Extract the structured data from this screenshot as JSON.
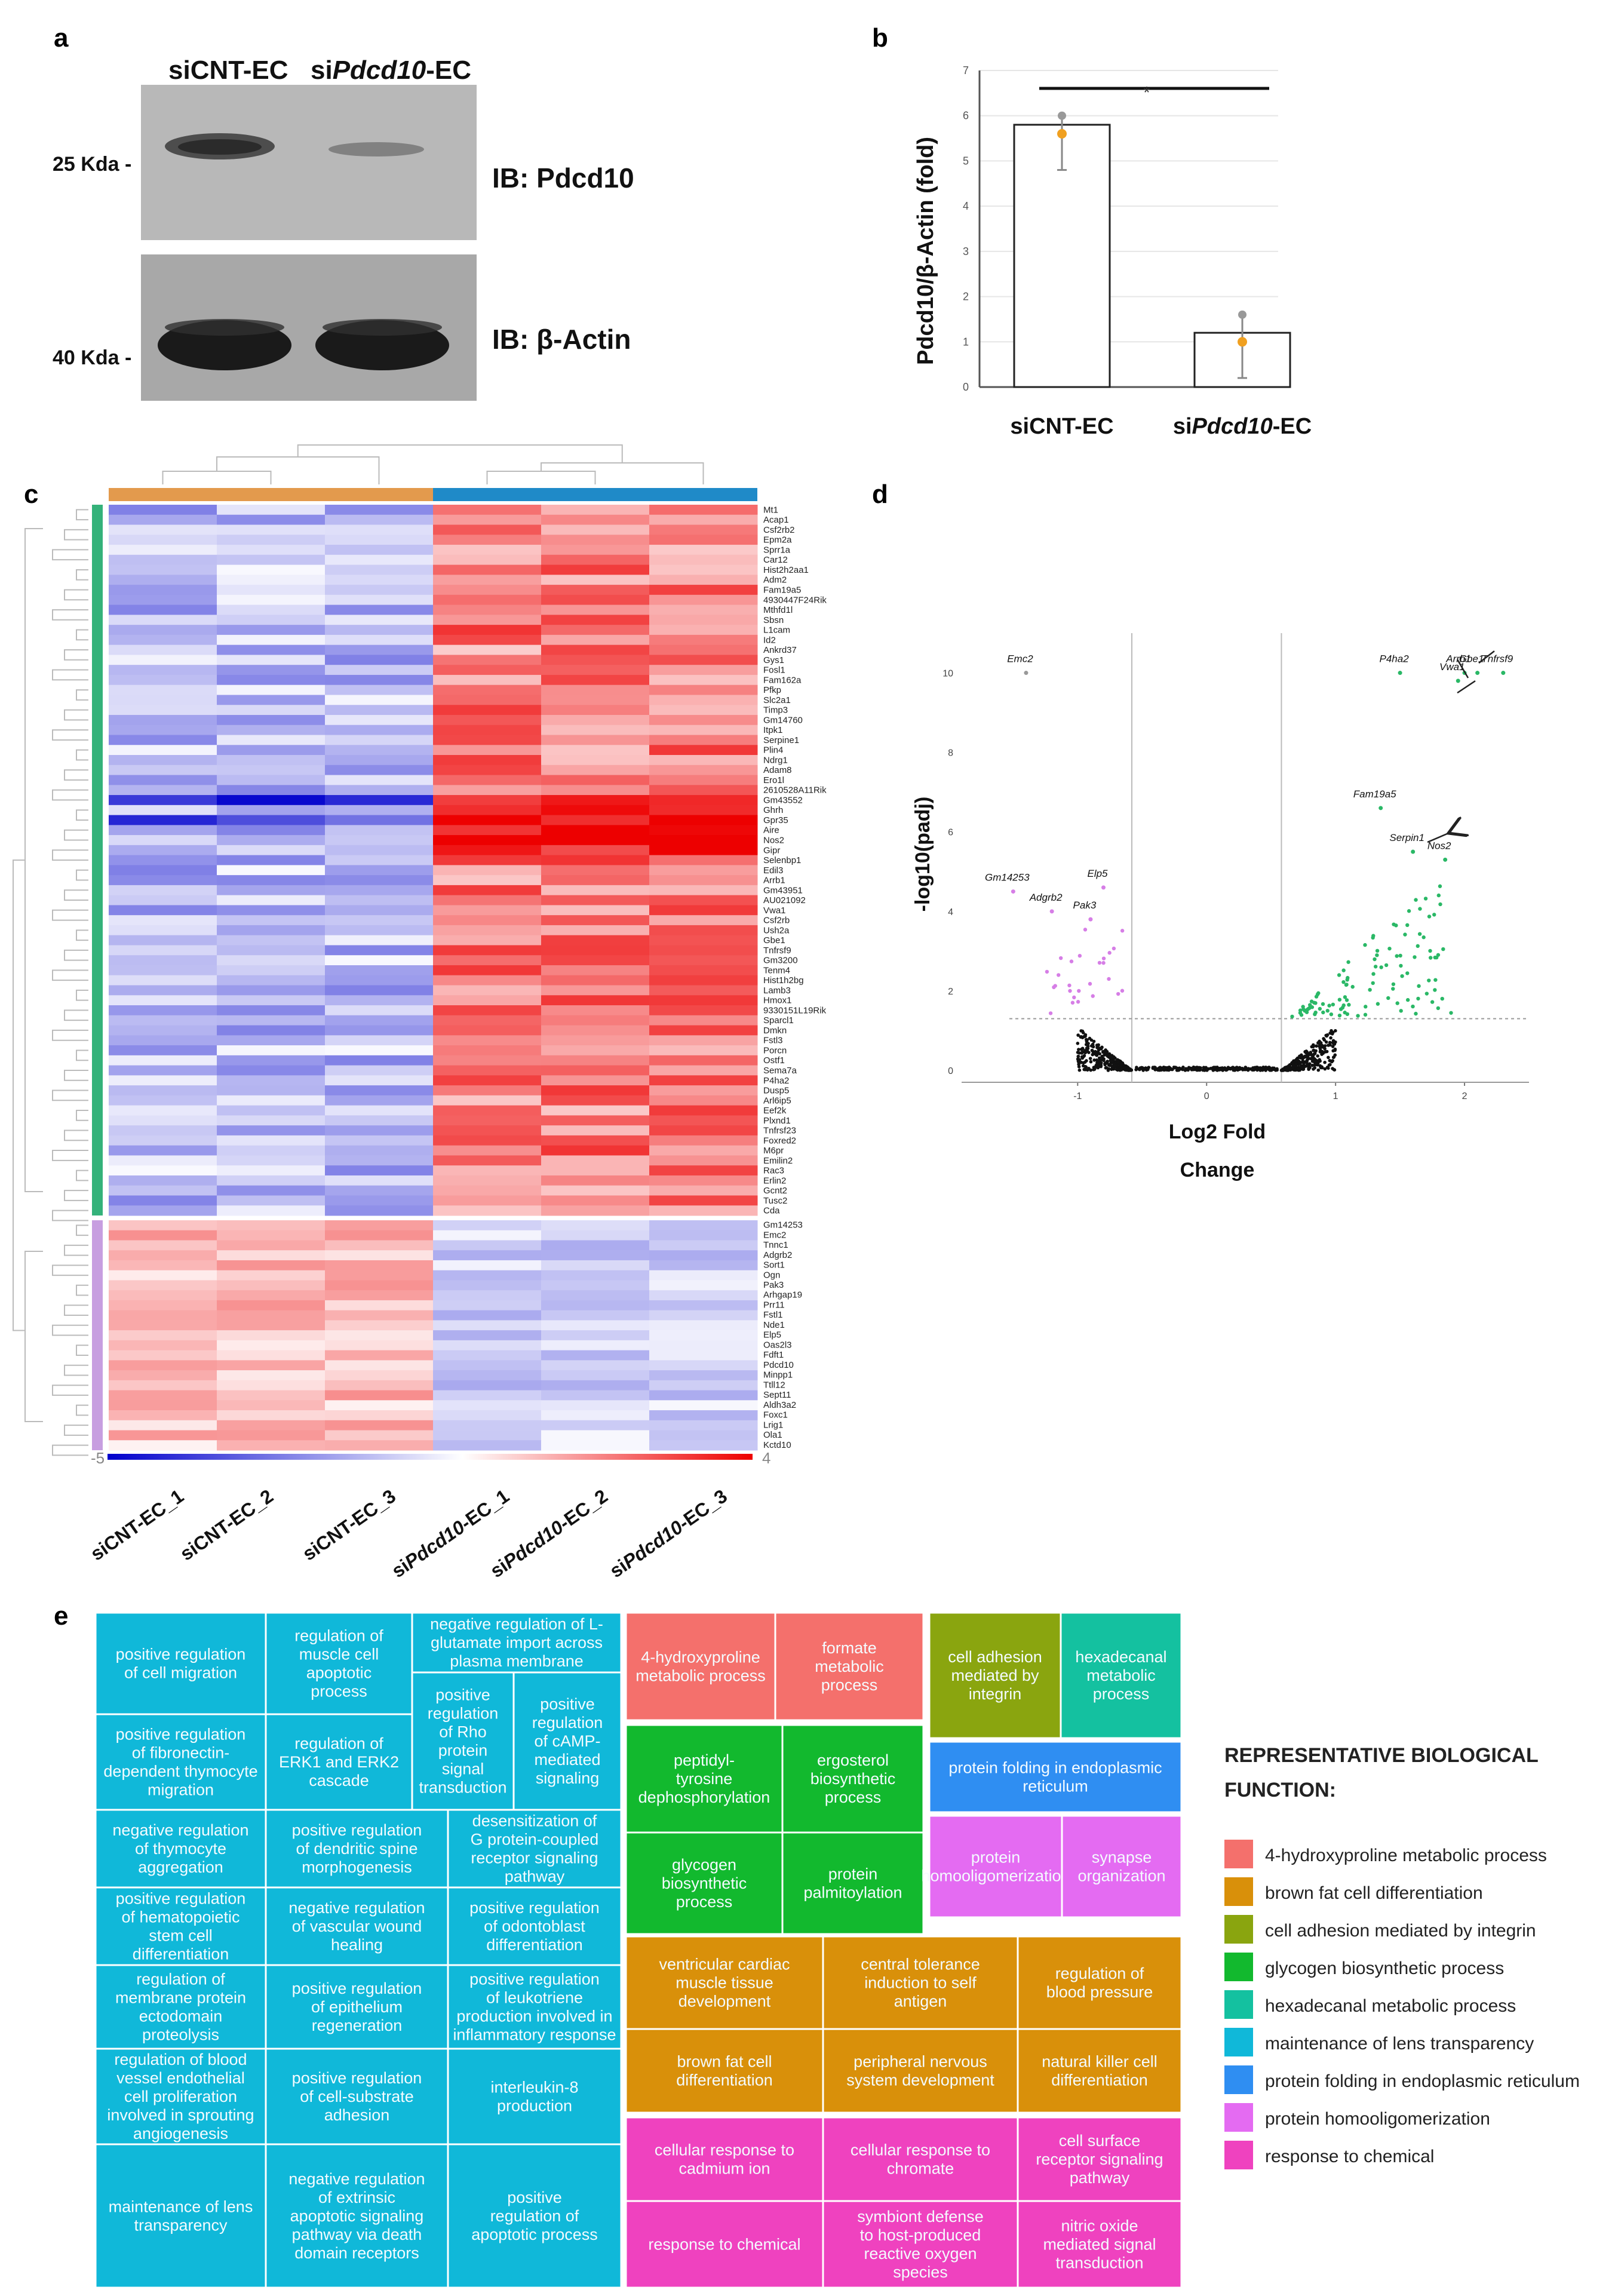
{
  "panel_labels": {
    "a": "a",
    "b": "b",
    "c": "c",
    "d": "d",
    "e": "e"
  },
  "panel_a": {
    "lane1_label": "siCNT-EC",
    "lane2_prefix": "si",
    "lane2_gene": "Pdcd10",
    "lane2_suffix": "-EC",
    "mw_top": "25 Kda -",
    "mw_bottom": "40 Kda -",
    "ib_top": "IB: Pdcd10",
    "ib_bottom": "IB: β-Actin"
  },
  "panel_b": {
    "ylabel": "Pdcd10/β-Actin (fold)",
    "significance": "*",
    "x1_label": "siCNT-EC",
    "x2_prefix": "si",
    "x2_gene": "Pdcd10",
    "x2_suffix": "-EC"
  },
  "chart_data": [
    {
      "type": "bar",
      "categories": [
        "siCNT-EC",
        "siPdcd10-EC"
      ],
      "values": [
        5.8,
        1.2
      ],
      "error_low": [
        4.8,
        0.2
      ],
      "error_high": [
        6.0,
        1.6
      ],
      "points": [
        [
          6.0,
          5.6
        ],
        [
          1.6,
          1.0
        ]
      ],
      "ylim": [
        0,
        7
      ],
      "yticks": [
        "0",
        "1",
        "2",
        "3",
        "4",
        "5",
        "6",
        "7"
      ],
      "ylabel": "Pdcd10/β-Actin (fold)",
      "significance": "*"
    },
    {
      "type": "heatmap",
      "samples": [
        "siCNT-EC_1",
        "siCNT-EC_2",
        "siCNT-EC_3",
        "siPdcd10-EC_1",
        "siPdcd10-EC_2",
        "siPdcd10-EC_3"
      ],
      "sample_prefix": [
        "siCNT-EC_1",
        "siCNT-EC_2",
        "siCNT-EC_3",
        "si",
        "si",
        "si"
      ],
      "sample_gene": [
        "",
        "",
        "",
        "Pdcd10",
        "Pdcd10",
        "Pdcd10"
      ],
      "sample_suffix": [
        "",
        "",
        "",
        "-EC_1",
        "-EC_2",
        "-EC_3"
      ],
      "genes_up": [
        "Mt1",
        "Acap1",
        "Csf2rb2",
        "Epm2a",
        "Sprr1a",
        "Car12",
        "Hist2h2aa1",
        "Adm2",
        "Fam19a5",
        "4930447F24Rik",
        "Mthfd1l",
        "Sbsn",
        "L1cam",
        "Id2",
        "Ankrd37",
        "Gys1",
        "Fosl1",
        "Fam162a",
        "Pfkp",
        "Slc2a1",
        "Timp3",
        "Gm14760",
        "Itpk1",
        "Serpine1",
        "Plin4",
        "Ndrg1",
        "Adam8",
        "Ero1l",
        "2610528A11Rik",
        "Gm43552",
        "Ghrh",
        "Gpr35",
        "Aire",
        "Nos2",
        "Gipr",
        "Selenbp1",
        "Edil3",
        "Arrb1",
        "Gm43951",
        "AU021092",
        "Vwa1",
        "Csf2rb",
        "Ush2a",
        "Gbe1",
        "Tnfrsf9",
        "Gm3200",
        "Tenm4",
        "Hist1h2bg",
        "Lamb3",
        "Hmox1",
        "9330151L19Rik",
        "Sparcl1",
        "Dmkn",
        "Fstl3",
        "Porcn",
        "Ostf1",
        "Sema7a",
        "P4ha2",
        "Dusp5",
        "Arl6ip5",
        "Eef2k",
        "Plxnd1",
        "Tnfrsf23",
        "Foxred2",
        "M6pr",
        "Emilin2",
        "Rac3",
        "Erlin2",
        "Gcnt2",
        "Tusc2",
        "Cda"
      ],
      "genes_down": [
        "Gm14253",
        "Emc2",
        "Tnnc1",
        "Adgrb2",
        "Sort1",
        "Ogn",
        "Pak3",
        "Arhgap19",
        "Prr11",
        "Fstl1",
        "Nde1",
        "Elp5",
        "Oas2l3",
        "Fdft1",
        "Pdcd10",
        "Minpp1",
        "Ttll12",
        "Sept11",
        "Aldh3a2",
        "Foxc1",
        "Lrig1",
        "Ola1",
        "Kctd10"
      ],
      "colorbar_min": "-5",
      "colorbar_max": "4",
      "colorscale": [
        "#0000cc",
        "#ffffff",
        "#ee0000"
      ]
    },
    {
      "type": "scatter",
      "xlabel": "Log2 Fold Change",
      "xlabel_line1": "Log2 Fold",
      "xlabel_line2": "Change",
      "ylabel": "-log10(padj)",
      "xlim": [
        -1.9,
        2.5
      ],
      "ylim": [
        -0.3,
        11
      ],
      "xticks": [
        "-1",
        "0",
        "1",
        "2"
      ],
      "yticks": [
        "0",
        "2",
        "4",
        "6",
        "8",
        "10"
      ],
      "fc_cutoffs": [
        -0.58,
        0.58
      ],
      "padj_cutoff": 1.3,
      "labels": [
        {
          "gene": "Emc2",
          "x": -1.4,
          "y": 10.0
        },
        {
          "gene": "Gm14253",
          "x": -1.5,
          "y": 4.5
        },
        {
          "gene": "Adgrb2",
          "x": -1.2,
          "y": 4.0
        },
        {
          "gene": "Elp5",
          "x": -0.8,
          "y": 4.6
        },
        {
          "gene": "Pak3",
          "x": -0.9,
          "y": 3.8
        },
        {
          "gene": "P4ha2",
          "x": 1.5,
          "y": 10.0
        },
        {
          "gene": "Arrb1",
          "x": 2.0,
          "y": 10.0
        },
        {
          "gene": "Gbe1",
          "x": 2.1,
          "y": 10.0
        },
        {
          "gene": "Tnfrsf9",
          "x": 2.3,
          "y": 10.0
        },
        {
          "gene": "Vwa1",
          "x": 1.95,
          "y": 9.8
        },
        {
          "gene": "Fam19a5",
          "x": 1.35,
          "y": 6.6
        },
        {
          "gene": "Serpin1",
          "x": 1.6,
          "y": 5.5
        },
        {
          "gene": "Nos2",
          "x": 1.85,
          "y": 5.3
        }
      ]
    }
  ],
  "panel_e": {
    "legend_title_1": "REPRESENTATIVE BIOLOGICAL",
    "legend_title_2": "FUNCTION:",
    "legend": [
      {
        "label": "4-hydroxyproline metabolic process",
        "color": "#f4706c"
      },
      {
        "label": "brown fat cell differentiation",
        "color": "#d9900a"
      },
      {
        "label": "cell adhesion mediated by integrin",
        "color": "#8aa50f"
      },
      {
        "label": "glycogen biosynthetic process",
        "color": "#12b92e"
      },
      {
        "label": "hexadecanal metabolic process",
        "color": "#14c1a0"
      },
      {
        "label": "maintenance of lens transparency",
        "color": "#10b8d9"
      },
      {
        "label": "protein folding in endoplasmic reticulum",
        "color": "#2f8ef2"
      },
      {
        "label": "protein homooligomerization",
        "color": "#e46bf2"
      },
      {
        "label": "response to chemical",
        "color": "#ef42bf"
      }
    ],
    "tiles": [
      "positive regulation|of cell migration",
      "regulation of|muscle cell|apoptotic|process",
      "negative regulation of L-|glutamate import across|plasma membrane",
      "positive regulation|of fibronectin-|dependent thymocyte|migration",
      "regulation of|ERK1 and ERK2|cascade",
      "positive|regulation|of Rho|protein|signal|transduction",
      "positive|regulation|of cAMP-|mediated|signaling",
      "negative regulation|of thymocyte|aggregation",
      "positive regulation|of dendritic spine|morphogenesis",
      "desensitization of|G protein-coupled|receptor signaling|pathway",
      "positive regulation|of hematopoietic|stem cell|differentiation",
      "negative regulation|of vascular wound|healing",
      "positive regulation|of odontoblast|differentiation",
      "regulation of|membrane protein|ectodomain|proteolysis",
      "positive regulation|of epithelium|regeneration",
      "positive regulation|of leukotriene|production involved in|inflammatory response",
      "regulation of blood|vessel endothelial|cell proliferation|involved in sprouting|angiogenesis",
      "positive regulation|of cell-substrate|adhesion",
      "interleukin-8|production",
      "maintenance of lens|transparency",
      "negative regulation|of extrinsic|apoptotic signaling|pathway via death|domain receptors",
      "positive|regulation of|apoptotic process",
      "4-hydroxyproline|metabolic process",
      "formate|metabolic|process",
      "cell adhesion|mediated by|integrin",
      "hexadecanal|metabolic|process",
      "peptidyl-|tyrosine|dephosphorylation",
      "ergosterol|biosynthetic|process",
      "protein folding in endoplasmic|reticulum",
      "glycogen|biosynthetic|process",
      "protein|palmitoylation",
      "protein|homooligomerization",
      "synapse|organization",
      "ventricular cardiac|muscle tissue|development",
      "central tolerance|induction to self|antigen",
      "regulation of|blood pressure",
      "brown fat cell|differentiation",
      "peripheral nervous|system development",
      "natural killer cell|differentiation",
      "cellular response to|cadmium ion",
      "cellular response to|chromate",
      "cell surface|receptor signaling|pathway",
      "response to chemical",
      "symbiont defense|to host-produced|reactive oxygen|species",
      "nitric oxide|mediated signal|transduction"
    ]
  }
}
